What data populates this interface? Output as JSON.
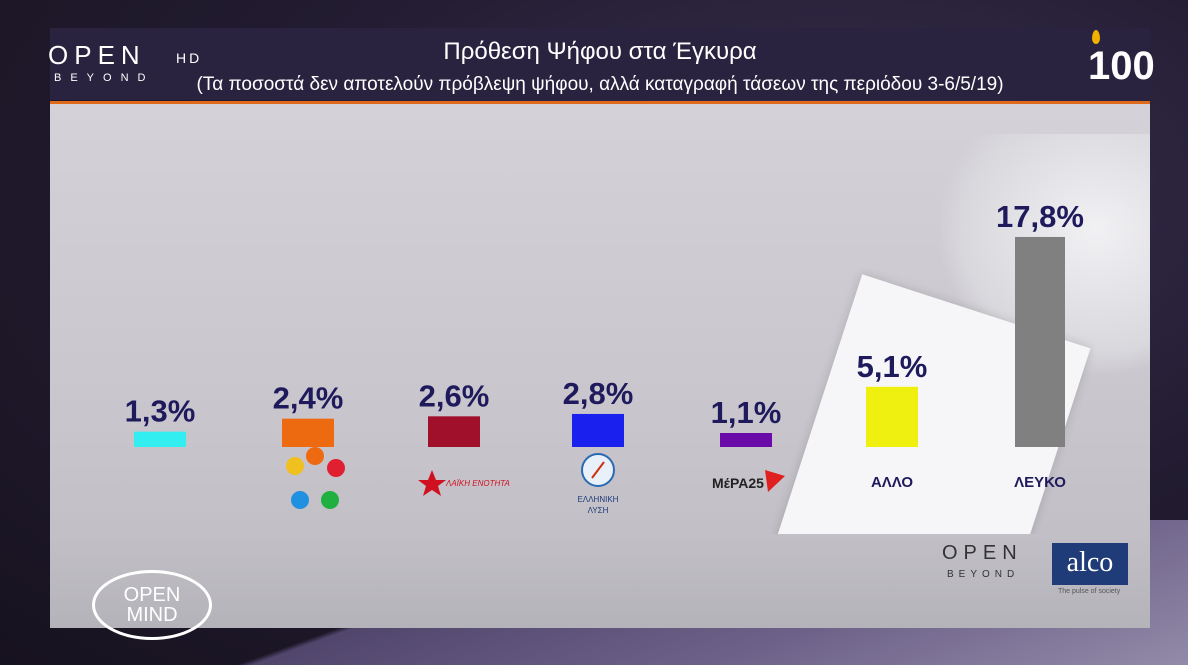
{
  "header": {
    "title": "Πρόθεση Ψήφου στα Έγκυρα",
    "subtitle": "(Τα ποσοστά δεν αποτελούν πρόβλεψη ψήφου, αλλά καταγραφή τάσεων της περιόδου 3-6/5/19)"
  },
  "branding": {
    "channel_open": "OPEN",
    "channel_hd": "HD",
    "channel_beyond": "BEYOND",
    "anniversary": "100",
    "openmind_line1": "OPEN",
    "openmind_line2": "MIND",
    "pollster": "alco",
    "pollster_tagline": "The pulse of society",
    "partner_open": "OPEN",
    "partner_beyond": "BEYOND"
  },
  "party_logo_text": {
    "laiki_enotita": "ΛΑΪΚΗ ΕΝΟΤΗΤΑ",
    "elliniki_lysi_1": "ΕΛΛΗΝΙΚΗ",
    "elliniki_lysi_2": "ΛΥΣΗ",
    "mera25": "ΜέΡΑ25"
  },
  "chart_data": {
    "type": "bar",
    "title": "Πρόθεση Ψήφου στα Έγκυρα",
    "subtitle": "(Τα ποσοστά δεν αποτελούν πρόβλεψη ψήφου, αλλά καταγραφή τάσεων της περιόδου 3-6/5/19)",
    "categories": [
      "",
      "",
      "",
      "",
      "",
      "ΑΛΛΟ",
      "ΛΕΥΚΟ"
    ],
    "values": [
      1.3,
      2.4,
      2.6,
      2.8,
      1.1,
      5.1,
      17.8
    ],
    "value_labels": [
      "1,3%",
      "2,4%",
      "2,6%",
      "2,8%",
      "1,1%",
      "5,1%",
      "17,8%"
    ],
    "colors": [
      "#33eef0",
      "#ee6a10",
      "#a0102a",
      "#1a20ee",
      "#6a0aa8",
      "#f0f010",
      "#808080"
    ],
    "ylim": [
      0,
      20
    ],
    "grid": false,
    "legend": "none"
  }
}
